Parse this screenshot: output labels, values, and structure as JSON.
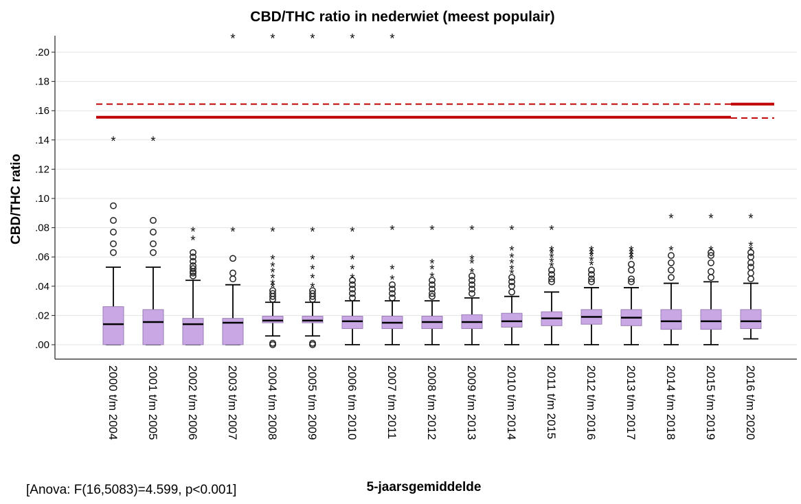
{
  "chart_data": {
    "type": "boxplot",
    "title": "CBD/THC ratio in nederwiet (meest populair)",
    "xlabel": "5-jaarsgemiddelde",
    "ylabel": "CBD/THC ratio",
    "ylim": [
      -0.01,
      0.21
    ],
    "yticks": [
      0.0,
      0.02,
      0.04,
      0.06,
      0.08,
      0.1,
      0.12,
      0.14,
      0.16,
      0.18,
      0.2
    ],
    "ytick_labels": [
      ".00",
      ".02",
      ".04",
      ".06",
      ".08",
      ".10",
      ".12",
      ".14",
      ".16",
      ".18",
      ".20"
    ],
    "grid": true,
    "colors": {
      "box_fill": "#c9a6e4",
      "box_stroke": "#9a7fb4",
      "median": "#000000",
      "reference": "#c00000",
      "grid": "#e3e3e3",
      "axis": "#222222"
    },
    "categories": [
      "2000 t/m 2004",
      "2001 t/m 2005",
      "2002 t/m 2006",
      "2003 t/m 2007",
      "2004 t/m 2008",
      "2005 t/m 2009",
      "2006 t/m 2010",
      "2007 t/m 2011",
      "2008 t/m 2012",
      "2009 t/m 2013",
      "2010 t/m 2014",
      "2011 t/m 2015",
      "2012 t/m 2016",
      "2013 t/m 2017",
      "2014 t/m 2018",
      "2015 t/m 2019",
      "2016 t/m 2020"
    ],
    "boxes": [
      {
        "whisker_low": 0.0,
        "q1": 0.0,
        "median": 0.014,
        "q3": 0.026,
        "whisker_high": 0.053,
        "outliers": [
          0.063,
          0.069,
          0.077,
          0.085,
          0.095
        ],
        "extremes": [
          0.14
        ]
      },
      {
        "whisker_low": 0.0,
        "q1": 0.0,
        "median": 0.0155,
        "q3": 0.024,
        "whisker_high": 0.053,
        "outliers": [
          0.063,
          0.069,
          0.077,
          0.085
        ],
        "extremes": [
          0.14
        ]
      },
      {
        "whisker_low": 0.0,
        "q1": 0.0,
        "median": 0.014,
        "q3": 0.018,
        "whisker_high": 0.044,
        "outliers": [
          0.047,
          0.049,
          0.05,
          0.052,
          0.054,
          0.057,
          0.06,
          0.063
        ],
        "extremes": [
          0.072,
          0.078
        ]
      },
      {
        "whisker_low": 0.0,
        "q1": 0.0,
        "median": 0.015,
        "q3": 0.018,
        "whisker_high": 0.041,
        "outliers": [
          0.045,
          0.049,
          0.059
        ],
        "extremes": [
          0.078,
          0.21
        ]
      },
      {
        "whisker_low": 0.006,
        "q1": 0.015,
        "median": 0.0165,
        "q3": 0.0195,
        "whisker_high": 0.029,
        "outliers": [
          0.0,
          0.001,
          0.031,
          0.033,
          0.035,
          0.037
        ],
        "extremes": [
          0.04,
          0.042,
          0.046,
          0.05,
          0.054,
          0.059,
          0.078,
          0.21
        ]
      },
      {
        "whisker_low": 0.006,
        "q1": 0.015,
        "median": 0.0165,
        "q3": 0.0195,
        "whisker_high": 0.029,
        "outliers": [
          0.0,
          0.001,
          0.031,
          0.033,
          0.035,
          0.037
        ],
        "extremes": [
          0.04,
          0.046,
          0.052,
          0.059,
          0.078,
          0.21
        ]
      },
      {
        "whisker_low": 0.0,
        "q1": 0.011,
        "median": 0.016,
        "q3": 0.0195,
        "whisker_high": 0.03,
        "outliers": [
          0.032,
          0.035,
          0.038,
          0.041,
          0.044
        ],
        "extremes": [
          0.046,
          0.052,
          0.059,
          0.078,
          0.21
        ]
      },
      {
        "whisker_low": 0.0,
        "q1": 0.011,
        "median": 0.015,
        "q3": 0.0195,
        "whisker_high": 0.03,
        "outliers": [
          0.032,
          0.035,
          0.038,
          0.041
        ],
        "extremes": [
          0.045,
          0.052,
          0.079,
          0.21
        ]
      },
      {
        "whisker_low": 0.0,
        "q1": 0.011,
        "median": 0.0155,
        "q3": 0.0195,
        "whisker_high": 0.03,
        "outliers": [
          0.033,
          0.035,
          0.038,
          0.041,
          0.044
        ],
        "extremes": [
          0.047,
          0.052,
          0.056,
          0.079
        ]
      },
      {
        "whisker_low": 0.0,
        "q1": 0.011,
        "median": 0.0155,
        "q3": 0.0205,
        "whisker_high": 0.032,
        "outliers": [
          0.035,
          0.038,
          0.041,
          0.044,
          0.047
        ],
        "extremes": [
          0.05,
          0.056,
          0.059,
          0.079
        ]
      },
      {
        "whisker_low": 0.0,
        "q1": 0.012,
        "median": 0.016,
        "q3": 0.0215,
        "whisker_high": 0.033,
        "outliers": [
          0.036,
          0.04,
          0.043,
          0.046
        ],
        "extremes": [
          0.049,
          0.052,
          0.056,
          0.06,
          0.065,
          0.079
        ]
      },
      {
        "whisker_low": 0.0,
        "q1": 0.013,
        "median": 0.018,
        "q3": 0.0225,
        "whisker_high": 0.036,
        "outliers": [
          0.043,
          0.045,
          0.048,
          0.051
        ],
        "extremes": [
          0.054,
          0.057,
          0.06,
          0.063,
          0.065,
          0.079
        ]
      },
      {
        "whisker_low": 0.0,
        "q1": 0.014,
        "median": 0.019,
        "q3": 0.024,
        "whisker_high": 0.039,
        "outliers": [
          0.043,
          0.045,
          0.048,
          0.051
        ],
        "extremes": [
          0.055,
          0.058,
          0.061,
          0.063,
          0.065
        ]
      },
      {
        "whisker_low": 0.0,
        "q1": 0.013,
        "median": 0.0185,
        "q3": 0.024,
        "whisker_high": 0.039,
        "outliers": [
          0.043,
          0.045,
          0.051,
          0.055
        ],
        "extremes": [
          0.059,
          0.061,
          0.063,
          0.065
        ]
      },
      {
        "whisker_low": 0.0,
        "q1": 0.0105,
        "median": 0.016,
        "q3": 0.024,
        "whisker_high": 0.042,
        "outliers": [
          0.046,
          0.051,
          0.056,
          0.061
        ],
        "extremes": [
          0.065,
          0.087
        ]
      },
      {
        "whisker_low": 0.0,
        "q1": 0.0105,
        "median": 0.016,
        "q3": 0.024,
        "whisker_high": 0.043,
        "outliers": [
          0.046,
          0.05,
          0.056,
          0.061,
          0.063
        ],
        "extremes": [
          0.065,
          0.087
        ]
      },
      {
        "whisker_low": 0.004,
        "q1": 0.011,
        "median": 0.016,
        "q3": 0.024,
        "whisker_high": 0.042,
        "outliers": [
          0.045,
          0.049,
          0.053,
          0.056,
          0.06,
          0.063
        ],
        "extremes": [
          0.065,
          0.068,
          0.087
        ]
      }
    ],
    "reference_lines": [
      {
        "style": "solid",
        "y": 0.1555,
        "from_index": 0,
        "to_index": 15.5
      },
      {
        "style": "dashed",
        "y": 0.1645,
        "from_index": 0,
        "to_index": 15.5
      },
      {
        "style": "solid",
        "y": 0.1645,
        "from_index": 15.5,
        "to_index": 16.5
      },
      {
        "style": "dashed",
        "y": 0.155,
        "from_index": 15.5,
        "to_index": 16.5
      }
    ]
  },
  "footnote": "[Anova: F(16,5083)=4.599, p<0.001]"
}
